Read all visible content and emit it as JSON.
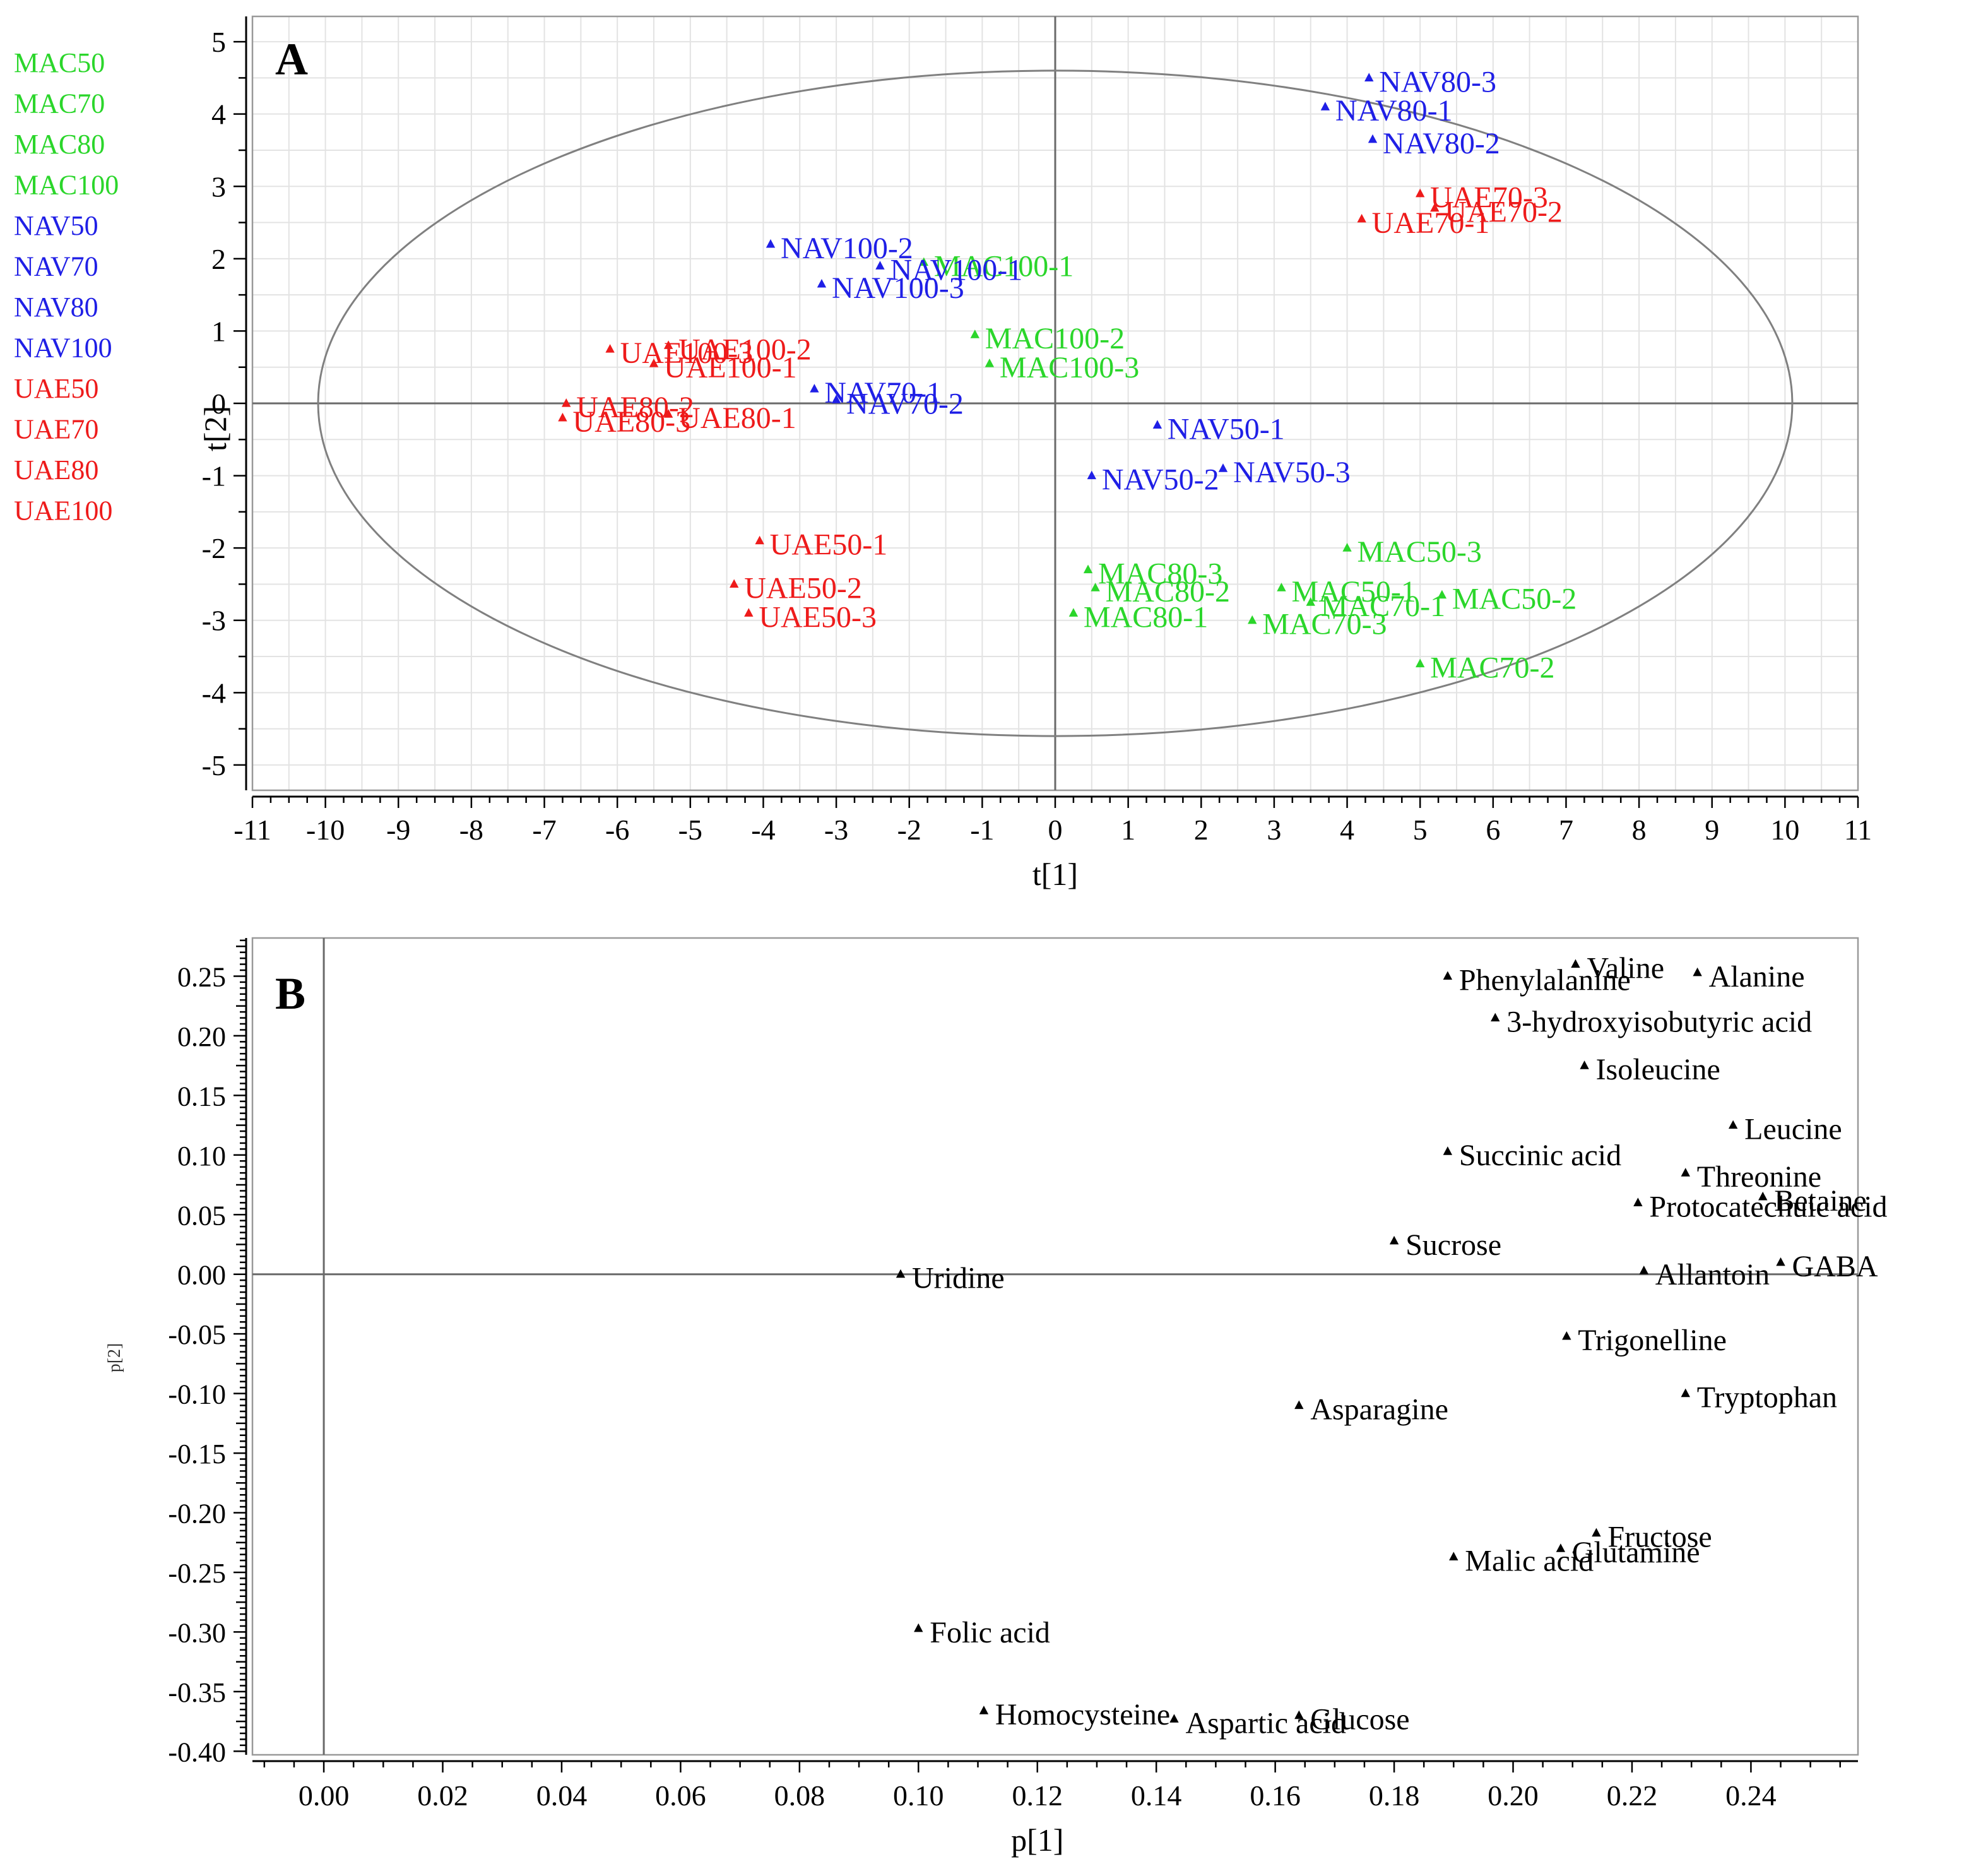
{
  "colors": {
    "MAC": "#2bd62b",
    "NAV": "#1f1fe6",
    "UAE": "#ee1b1b",
    "black": "#000000",
    "grid": "#e3e3e3",
    "axis": "#6a6a6a",
    "frame": "#999999"
  },
  "legend": {
    "items": [
      {
        "label": "MAC50",
        "group": "MAC"
      },
      {
        "label": "MAC70",
        "group": "MAC"
      },
      {
        "label": "MAC80",
        "group": "MAC"
      },
      {
        "label": "MAC100",
        "group": "MAC"
      },
      {
        "label": "NAV50",
        "group": "NAV"
      },
      {
        "label": "NAV70",
        "group": "NAV"
      },
      {
        "label": "NAV80",
        "group": "NAV"
      },
      {
        "label": "NAV100",
        "group": "NAV"
      },
      {
        "label": "UAE50",
        "group": "UAE"
      },
      {
        "label": "UAE70",
        "group": "UAE"
      },
      {
        "label": "UAE80",
        "group": "UAE"
      },
      {
        "label": "UAE100",
        "group": "UAE"
      }
    ]
  },
  "chart_data": [
    {
      "panel": "A",
      "type": "scatter",
      "xlabel": "t[1]",
      "ylabel": "t[2]",
      "xlim": [
        -11,
        11
      ],
      "ylim": [
        -5,
        5
      ],
      "xticks": [
        "-11",
        "-10",
        "-9",
        "-8",
        "-7",
        "-6",
        "-5",
        "-4",
        "-3",
        "-2",
        "-1",
        "0",
        "1",
        "2",
        "3",
        "4",
        "5",
        "6",
        "7",
        "8",
        "9",
        "10",
        "11"
      ],
      "yticks": [
        "5",
        "4",
        "3",
        "2",
        "1",
        "0",
        "-1",
        "-2",
        "-3",
        "-4",
        "-5"
      ],
      "grid": true,
      "ellipse": {
        "center": [
          0,
          0
        ],
        "rx": 10.1,
        "ry": 4.6
      },
      "points": [
        {
          "label": "NAV80-3",
          "x": 4.3,
          "y": 4.5,
          "group": "NAV"
        },
        {
          "label": "NAV80-1",
          "x": 3.7,
          "y": 4.1,
          "group": "NAV"
        },
        {
          "label": "NAV80-2",
          "x": 4.35,
          "y": 3.65,
          "group": "NAV"
        },
        {
          "label": "UAE70-3",
          "x": 5.0,
          "y": 2.9,
          "group": "UAE"
        },
        {
          "label": "UAE70-2",
          "x": 5.2,
          "y": 2.7,
          "group": "UAE"
        },
        {
          "label": "UAE70-1",
          "x": 4.2,
          "y": 2.55,
          "group": "UAE"
        },
        {
          "label": "NAV100-2",
          "x": -3.9,
          "y": 2.2,
          "group": "NAV"
        },
        {
          "label": "MAC100-1",
          "x": -1.8,
          "y": 1.95,
          "group": "MAC"
        },
        {
          "label": "NAV100-1",
          "x": -2.4,
          "y": 1.9,
          "group": "NAV"
        },
        {
          "label": "NAV100-3",
          "x": -3.2,
          "y": 1.65,
          "group": "NAV"
        },
        {
          "label": "MAC100-2",
          "x": -1.1,
          "y": 0.95,
          "group": "MAC"
        },
        {
          "label": "MAC100-3",
          "x": -0.9,
          "y": 0.55,
          "group": "MAC"
        },
        {
          "label": "UAE100-3",
          "x": -6.1,
          "y": 0.75,
          "group": "UAE"
        },
        {
          "label": "UAE100-2",
          "x": -5.3,
          "y": 0.8,
          "group": "UAE"
        },
        {
          "label": "UAE100-1",
          "x": -5.5,
          "y": 0.55,
          "group": "UAE"
        },
        {
          "label": "NAV70-1",
          "x": -3.3,
          "y": 0.2,
          "group": "NAV"
        },
        {
          "label": "NAV70-2",
          "x": -3.0,
          "y": 0.05,
          "group": "NAV"
        },
        {
          "label": "UAE80-2",
          "x": -6.7,
          "y": 0.0,
          "group": "UAE"
        },
        {
          "label": "UAE80-1",
          "x": -5.3,
          "y": -0.15,
          "group": "UAE"
        },
        {
          "label": "UAE80-3",
          "x": -6.75,
          "y": -0.2,
          "group": "UAE"
        },
        {
          "label": "NAV50-1",
          "x": 1.4,
          "y": -0.3,
          "group": "NAV"
        },
        {
          "label": "NAV50-2",
          "x": 0.5,
          "y": -1.0,
          "group": "NAV"
        },
        {
          "label": "NAV50-3",
          "x": 2.3,
          "y": -0.9,
          "group": "NAV"
        },
        {
          "label": "UAE50-1",
          "x": -4.05,
          "y": -1.9,
          "group": "UAE"
        },
        {
          "label": "UAE50-2",
          "x": -4.4,
          "y": -2.5,
          "group": "UAE"
        },
        {
          "label": "UAE50-3",
          "x": -4.2,
          "y": -2.9,
          "group": "UAE"
        },
        {
          "label": "MAC50-3",
          "x": 4.0,
          "y": -2.0,
          "group": "MAC"
        },
        {
          "label": "MAC50-1",
          "x": 3.1,
          "y": -2.55,
          "group": "MAC"
        },
        {
          "label": "MAC50-2",
          "x": 5.3,
          "y": -2.65,
          "group": "MAC"
        },
        {
          "label": "MAC80-3",
          "x": 0.45,
          "y": -2.3,
          "group": "MAC"
        },
        {
          "label": "MAC80-2",
          "x": 0.55,
          "y": -2.55,
          "group": "MAC"
        },
        {
          "label": "MAC80-1",
          "x": 0.25,
          "y": -2.9,
          "group": "MAC"
        },
        {
          "label": "MAC70-1",
          "x": 3.5,
          "y": -2.75,
          "group": "MAC"
        },
        {
          "label": "MAC70-3",
          "x": 2.7,
          "y": -3.0,
          "group": "MAC"
        },
        {
          "label": "MAC70-2",
          "x": 5.0,
          "y": -3.6,
          "group": "MAC"
        }
      ]
    },
    {
      "panel": "B",
      "type": "scatter",
      "xlabel": "p[1]",
      "ylabel": "p[2]",
      "xlim": [
        -0.012,
        0.258
      ],
      "ylim": [
        -0.4,
        0.28
      ],
      "xticks": [
        "0.00",
        "0.02",
        "0.04",
        "0.06",
        "0.08",
        "0.10",
        "0.12",
        "0.14",
        "0.16",
        "0.18",
        "0.20",
        "0.22",
        "0.24"
      ],
      "yticks": [
        "0.25",
        "0.20",
        "0.15",
        "0.10",
        "0.05",
        "0.00",
        "-0.05",
        "-0.10",
        "-0.15",
        "-0.20",
        "-0.25",
        "-0.30",
        "-0.35",
        "-0.40"
      ],
      "grid": false,
      "points": [
        {
          "label": "Valine",
          "x": 0.2105,
          "y": 0.26
        },
        {
          "label": "Phenylalanine",
          "x": 0.189,
          "y": 0.25
        },
        {
          "label": "Alanine",
          "x": 0.231,
          "y": 0.253
        },
        {
          "label": "3-hydroxyisobutyric acid",
          "x": 0.197,
          "y": 0.215
        },
        {
          "label": "Isoleucine",
          "x": 0.212,
          "y": 0.175
        },
        {
          "label": "Leucine",
          "x": 0.237,
          "y": 0.125
        },
        {
          "label": "Succinic acid",
          "x": 0.189,
          "y": 0.103
        },
        {
          "label": "Threonine",
          "x": 0.229,
          "y": 0.085
        },
        {
          "label": "Betaine",
          "x": 0.242,
          "y": 0.065
        },
        {
          "label": "Protocatechuic acid",
          "x": 0.221,
          "y": 0.06
        },
        {
          "label": "Sucrose",
          "x": 0.18,
          "y": 0.028
        },
        {
          "label": "Allantoin",
          "x": 0.222,
          "y": 0.003
        },
        {
          "label": "GABA",
          "x": 0.245,
          "y": 0.01
        },
        {
          "label": "Uridine",
          "x": 0.097,
          "y": 0.0
        },
        {
          "label": "Trigonelline",
          "x": 0.209,
          "y": -0.052
        },
        {
          "label": "Tryptophan",
          "x": 0.229,
          "y": -0.1
        },
        {
          "label": "Asparagine",
          "x": 0.164,
          "y": -0.11
        },
        {
          "label": "Fructose",
          "x": 0.214,
          "y": -0.217
        },
        {
          "label": "Glutamine",
          "x": 0.208,
          "y": -0.23
        },
        {
          "label": "Malic acid",
          "x": 0.19,
          "y": -0.237
        },
        {
          "label": "Folic acid",
          "x": 0.1,
          "y": -0.297
        },
        {
          "label": "Homocysteine",
          "x": 0.111,
          "y": -0.366
        },
        {
          "label": "Glucose",
          "x": 0.164,
          "y": -0.37
        },
        {
          "label": "Aspartic acid",
          "x": 0.143,
          "y": -0.373
        }
      ]
    }
  ]
}
